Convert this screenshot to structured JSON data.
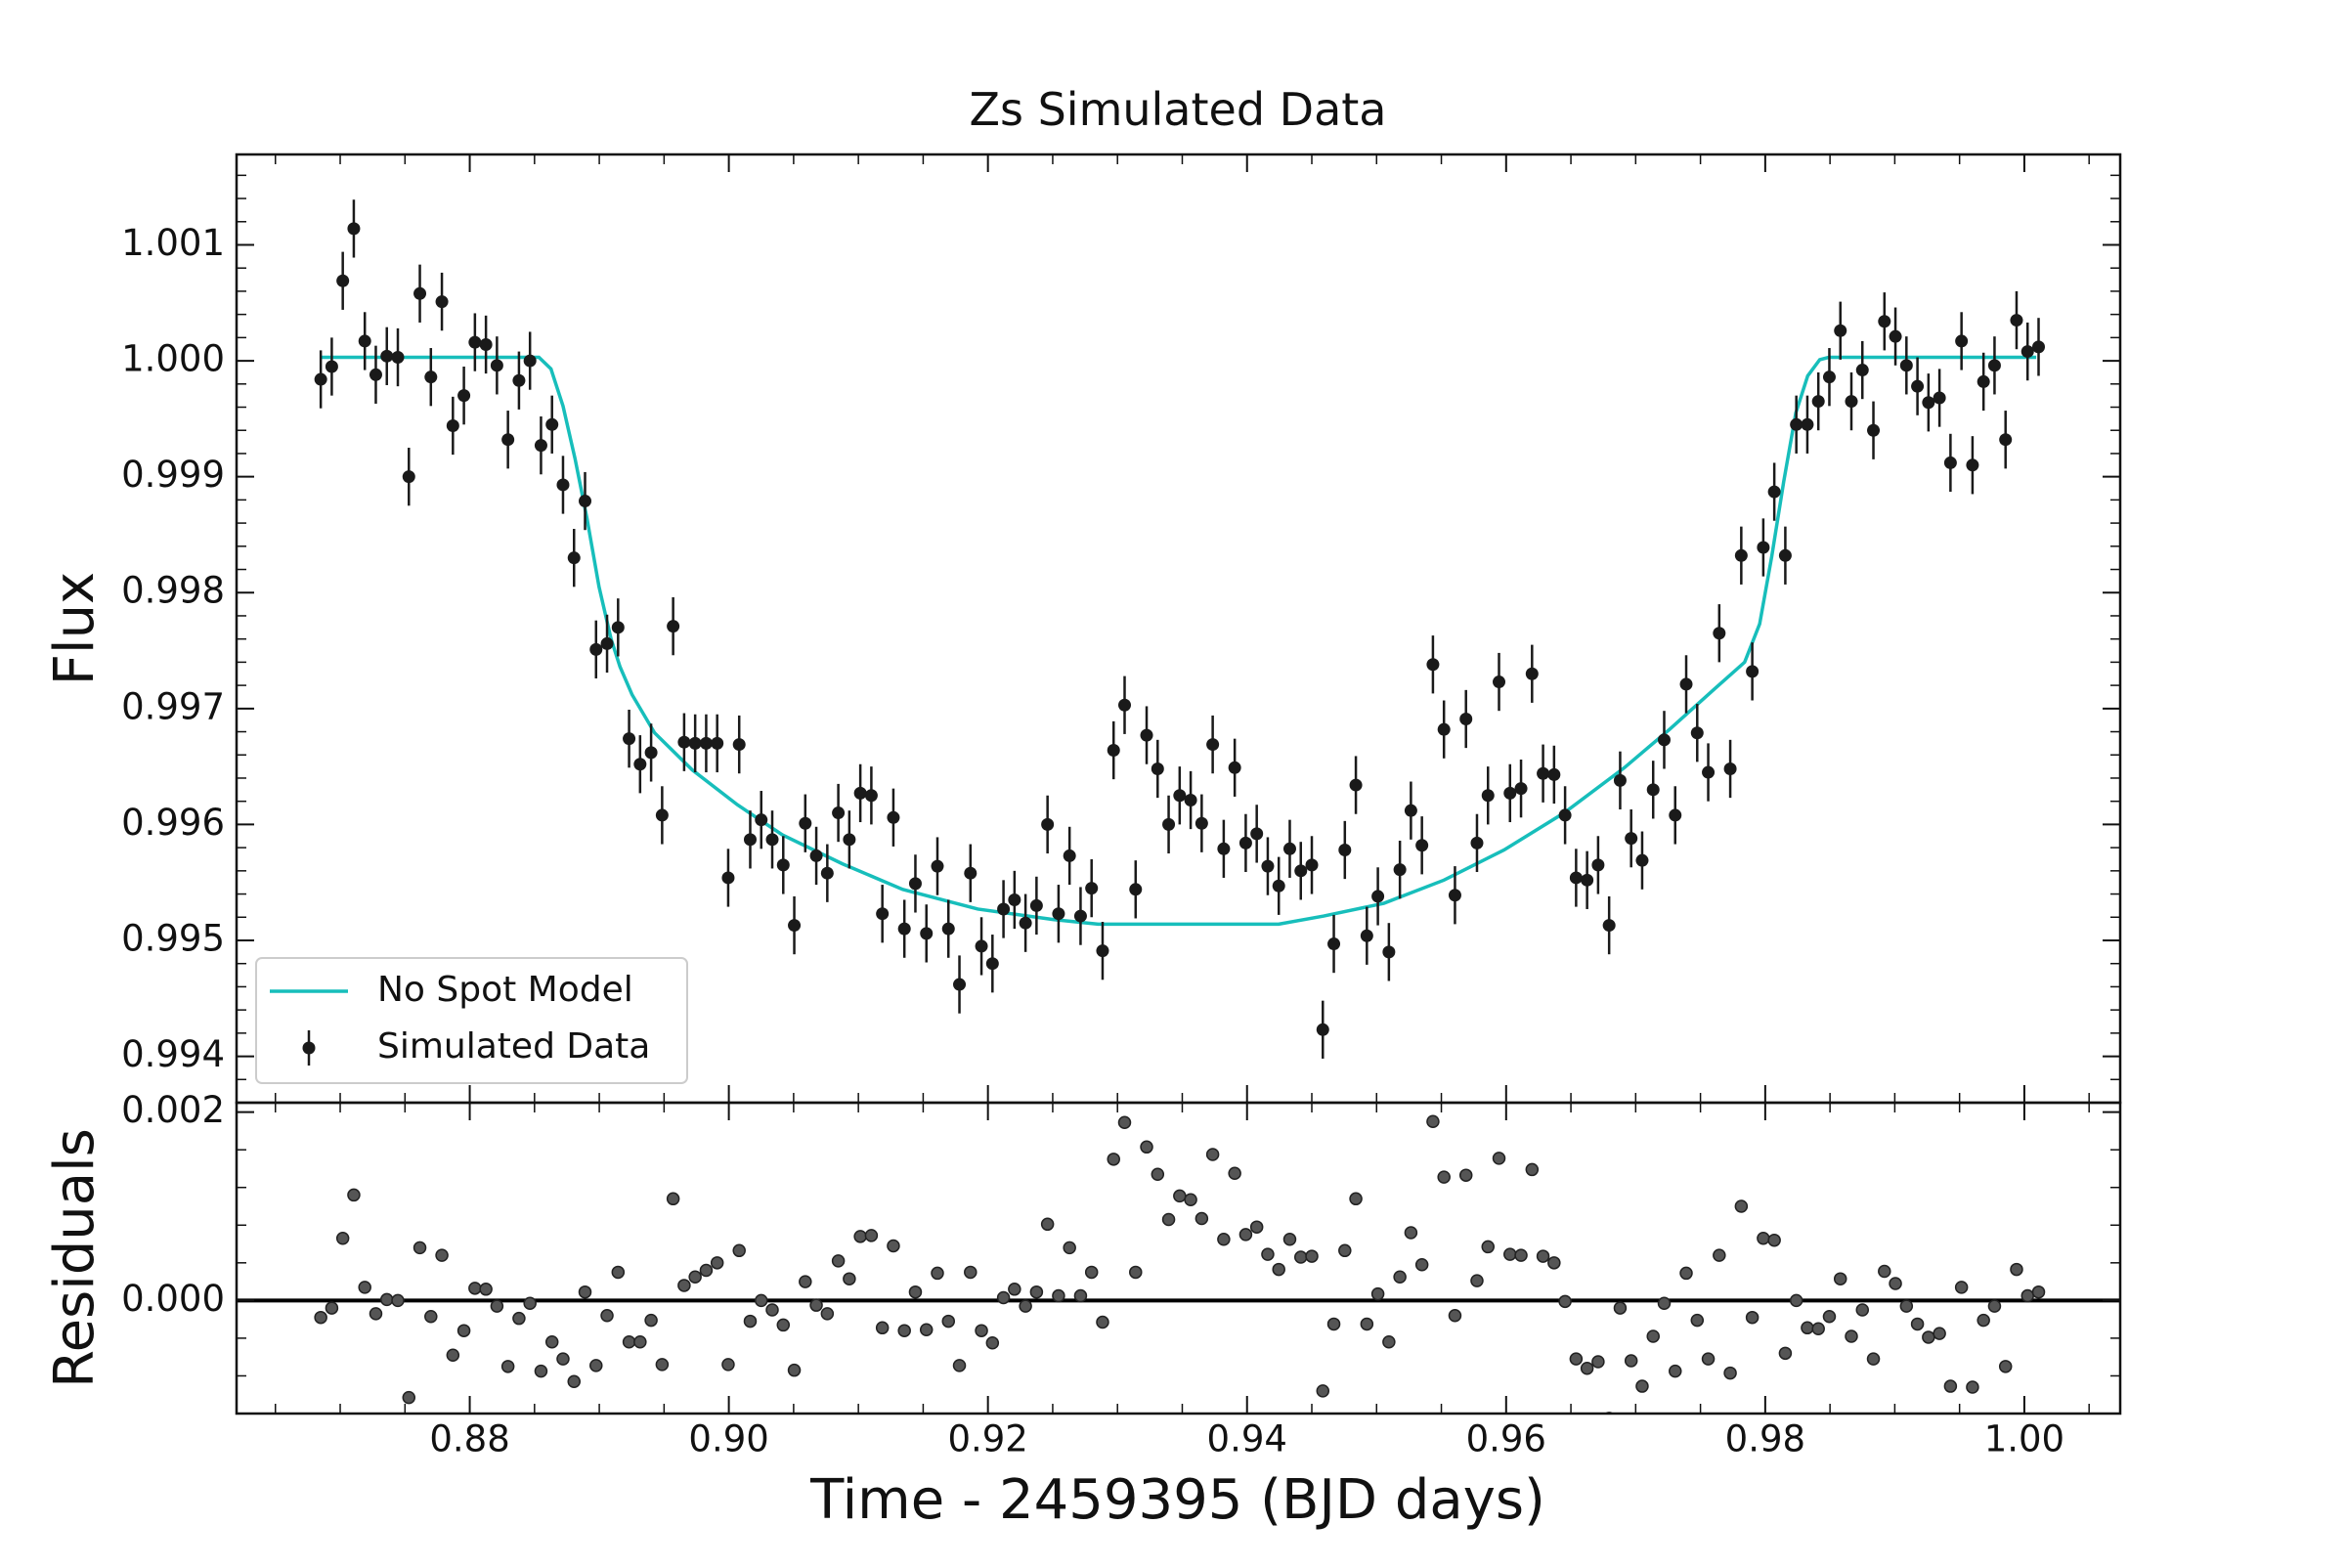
{
  "chart_data": {
    "type": "errorbar",
    "title": "Zs Simulated Data",
    "xlabel": "Time - 2459395 (BJD days)",
    "ylabel": "Flux",
    "xlim": [
      0.862,
      1.0074
    ],
    "xticks": [
      {
        "value": 0.88,
        "label": "0.88"
      },
      {
        "value": 0.9,
        "label": "0.90"
      },
      {
        "value": 0.92,
        "label": "0.92"
      },
      {
        "value": 0.94,
        "label": "0.94"
      },
      {
        "value": 0.96,
        "label": "0.96"
      },
      {
        "value": 0.98,
        "label": "0.98"
      },
      {
        "value": 1.0,
        "label": "1.00"
      }
    ],
    "ylim": [
      0.9936,
      1.00178
    ],
    "yticks": [
      0.994,
      0.995,
      0.996,
      0.997,
      0.998,
      0.999,
      {
        "value": 1.0,
        "label": "1.000"
      },
      1.001
    ],
    "legend": "lower left",
    "x": [
      0.8685,
      0.86935,
      0.8702,
      0.87105,
      0.8719,
      0.87275,
      0.8736,
      0.87445,
      0.8753,
      0.87615,
      0.877,
      0.87785,
      0.8787,
      0.87955,
      0.8804,
      0.88125,
      0.8821,
      0.88295,
      0.8838,
      0.88465,
      0.8855,
      0.88635,
      0.8872,
      0.88805,
      0.8889,
      0.88975,
      0.8906,
      0.89145,
      0.8923,
      0.89315,
      0.894,
      0.89485,
      0.8957,
      0.89655,
      0.8974,
      0.89825,
      0.8991,
      0.89995,
      0.9008,
      0.90165,
      0.9025,
      0.90335,
      0.9042,
      0.90505,
      0.9059,
      0.90675,
      0.9076,
      0.90845,
      0.9093,
      0.91015,
      0.911,
      0.91185,
      0.9127,
      0.91355,
      0.9144,
      0.91525,
      0.9161,
      0.91695,
      0.9178,
      0.91865,
      0.9195,
      0.92035,
      0.9212,
      0.92205,
      0.9229,
      0.92375,
      0.9246,
      0.92545,
      0.9263,
      0.92715,
      0.928,
      0.92885,
      0.9297,
      0.93055,
      0.9314,
      0.93225,
      0.9331,
      0.93395,
      0.9348,
      0.93565,
      0.9365,
      0.93735,
      0.9382,
      0.93905,
      0.9399,
      0.94075,
      0.9416,
      0.94245,
      0.9433,
      0.94415,
      0.945,
      0.94585,
      0.9467,
      0.94755,
      0.9484,
      0.94925,
      0.9501,
      0.95095,
      0.9518,
      0.95265,
      0.9535,
      0.95435,
      0.9552,
      0.95605,
      0.9569,
      0.95775,
      0.9586,
      0.95945,
      0.9603,
      0.96115,
      0.962,
      0.96285,
      0.9637,
      0.96455,
      0.9654,
      0.96625,
      0.9671,
      0.96795,
      0.9688,
      0.96965,
      0.9705,
      0.97135,
      0.9722,
      0.97305,
      0.9739,
      0.97475,
      0.9756,
      0.97645,
      0.9773,
      0.97815,
      0.979,
      0.97985,
      0.9807,
      0.98155,
      0.9824,
      0.98325,
      0.9841,
      0.98495,
      0.9858,
      0.98665,
      0.9875,
      0.98835,
      0.9892,
      0.99005,
      0.9909,
      0.99175,
      0.9926,
      0.99345,
      0.9943,
      0.99515,
      0.996,
      0.99685,
      0.9977,
      0.99855,
      0.9994,
      1.00025,
      1.0011
    ],
    "series": [
      {
        "name": "No Spot Model",
        "color": "#17bebb",
        "x": [
          0.86851,
          0.88534,
          0.88627,
          0.8872,
          0.88812,
          0.88905,
          0.88998,
          0.89091,
          0.8916,
          0.89253,
          0.89427,
          0.89718,
          0.90066,
          0.90414,
          0.90878,
          0.91342,
          0.91922,
          0.92503,
          0.92851,
          0.94244,
          0.94592,
          0.95056,
          0.9552,
          0.95984,
          0.96448,
          0.96913,
          0.97261,
          0.97609,
          0.97841,
          0.97957,
          0.9805,
          0.98143,
          0.98236,
          0.98328,
          0.98421,
          0.98491,
          1.00092
        ],
        "values": [
          1.00003,
          1.00003,
          0.99993,
          0.99961,
          0.99916,
          0.99864,
          0.99805,
          0.9976,
          0.99736,
          0.99712,
          0.99679,
          0.99647,
          0.99617,
          0.99591,
          0.99566,
          0.99544,
          0.99527,
          0.99518,
          0.99514,
          0.99514,
          0.99521,
          0.99532,
          0.99552,
          0.99578,
          0.9961,
          0.99649,
          0.99682,
          0.99717,
          0.9974,
          0.99773,
          0.99831,
          0.99896,
          0.99955,
          0.99987,
          1.00001,
          1.00003,
          1.00003
        ]
      },
      {
        "name": "Simulated Data",
        "color": "#1a1a1a",
        "yerr": 0.00025,
        "values": [
          0.99984,
          0.99995,
          1.00069,
          1.00114,
          1.00017,
          0.99988,
          1.00004,
          1.00003,
          0.999,
          1.00058,
          0.99986,
          1.00051,
          0.99944,
          0.9997,
          1.00016,
          1.00014,
          0.99996,
          0.99932,
          0.99983,
          1.0,
          0.99927,
          0.99945,
          0.99893,
          0.9983,
          0.99879,
          0.99751,
          0.99756,
          0.9977,
          0.99674,
          0.99652,
          0.99662,
          0.99608,
          0.99771,
          0.99671,
          0.9967,
          0.9967,
          0.9967,
          0.99554,
          0.99669,
          0.99587,
          0.99604,
          0.99587,
          0.99565,
          0.99513,
          0.99601,
          0.99573,
          0.99558,
          0.9961,
          0.99587,
          0.99627,
          0.99625,
          0.99523,
          0.99606,
          0.9951,
          0.99549,
          0.99506,
          0.99564,
          0.9951,
          0.99462,
          0.99558,
          0.99495,
          0.9948,
          0.99527,
          0.99535,
          0.99515,
          0.9953,
          0.996,
          0.99523,
          0.99573,
          0.99521,
          0.99545,
          0.99491,
          0.99664,
          0.99703,
          0.99544,
          0.99677,
          0.99648,
          0.996,
          0.99625,
          0.99621,
          0.99601,
          0.99669,
          0.99579,
          0.99649,
          0.99584,
          0.99592,
          0.99564,
          0.99547,
          0.99579,
          0.9956,
          0.99565,
          0.99423,
          0.99497,
          0.99578,
          0.99634,
          0.99504,
          0.99538,
          0.9949,
          0.99561,
          0.99612,
          0.99582,
          0.99738,
          0.99682,
          0.99539,
          0.99691,
          0.99584,
          0.99625,
          0.99723,
          0.99627,
          0.99631,
          0.9973,
          0.99644,
          0.99643,
          0.99608,
          0.99554,
          0.99552,
          0.99565,
          0.99513,
          0.99638,
          0.99588,
          0.99569,
          0.9963,
          0.99673,
          0.99608,
          0.99721,
          0.99679,
          0.99645,
          0.99765,
          0.99648,
          0.99832,
          0.99732,
          0.99839,
          0.99887,
          0.99832,
          0.99945,
          0.99945,
          0.99965,
          0.99986,
          1.00026,
          0.99965,
          0.99992,
          0.9994,
          1.00034,
          1.00021,
          0.99996,
          0.99978,
          0.99964,
          0.99968,
          0.99912,
          1.00017,
          0.9991,
          0.99982,
          0.99996,
          0.99932,
          1.00035,
          1.00008,
          1.00012
        ]
      }
    ],
    "residuals": {
      "ylabel": "Residuals",
      "color": "#555555",
      "hline": 0,
      "ylim": [
        -0.0012,
        0.0021
      ],
      "yticks": [
        {
          "value": 0,
          "label": "0.000"
        },
        0.002
      ],
      "values": [
        -0.00018,
        -8e-05,
        0.00066,
        0.00112,
        0.00014,
        -0.00014,
        1e-05,
        0.0,
        -0.00103,
        0.00056,
        -0.00017,
        0.00048,
        -0.00058,
        -0.00032,
        0.00013,
        0.00012,
        -6e-05,
        -0.0007,
        -0.00019,
        -3e-05,
        -0.00075,
        -0.00044,
        -0.00062,
        -0.00086,
        9e-05,
        -0.00069,
        -0.00016,
        0.0003,
        -0.00044,
        -0.00044,
        -0.00021,
        -0.00068,
        0.00108,
        0.00016,
        0.00025,
        0.00032,
        0.0004,
        -0.00068,
        0.00053,
        -0.00022,
        0.0,
        -0.0001,
        -0.00026,
        -0.00074,
        0.0002,
        -5e-05,
        -0.00014,
        0.00042,
        0.00023,
        0.00068,
        0.00069,
        -0.00029,
        0.00058,
        -0.00032,
        9e-05,
        -0.00031,
        0.00029,
        -0.00022,
        -0.00069,
        0.0003,
        -0.00032,
        -0.00045,
        3e-05,
        0.00012,
        -6e-05,
        9e-05,
        0.00081,
        5e-05,
        0.00056,
        5e-05,
        0.0003,
        -0.00023,
        0.0015,
        0.00189,
        0.0003,
        0.00163,
        0.00134,
        0.00086,
        0.00111,
        0.00107,
        0.00087,
        0.00155,
        0.00065,
        0.00135,
        0.0007,
        0.00078,
        0.00049,
        0.00033,
        0.00065,
        0.00046,
        0.00047,
        -0.00096,
        -0.00025,
        0.00053,
        0.00108,
        -0.00025,
        7e-05,
        -0.00044,
        0.00025,
        0.00072,
        0.00038,
        0.0019,
        0.00131,
        -0.00016,
        0.00133,
        0.00021,
        0.00057,
        0.00151,
        0.00049,
        0.00048,
        0.00139,
        0.00047,
        0.0004,
        -1e-05,
        -0.00062,
        -0.00072,
        -0.00065,
        -0.00125,
        -8e-05,
        -0.00064,
        -0.00091,
        -0.00038,
        -3e-05,
        -0.00075,
        0.00029,
        -0.00021,
        -0.00062,
        0.00048,
        -0.00077,
        0.001,
        -0.00018,
        0.00066,
        0.00064,
        -0.00056,
        0.0,
        -0.00029,
        -0.0003,
        -0.00017,
        0.00023,
        -0.00038,
        -0.0001,
        -0.00062,
        0.00031,
        0.00018,
        -6e-05,
        -0.00025,
        -0.00039,
        -0.00035,
        -0.00091,
        0.00014,
        -0.00092,
        -0.00021,
        -6e-05,
        -0.0007,
        0.00033,
        5e-05,
        9e-05
      ]
    }
  }
}
